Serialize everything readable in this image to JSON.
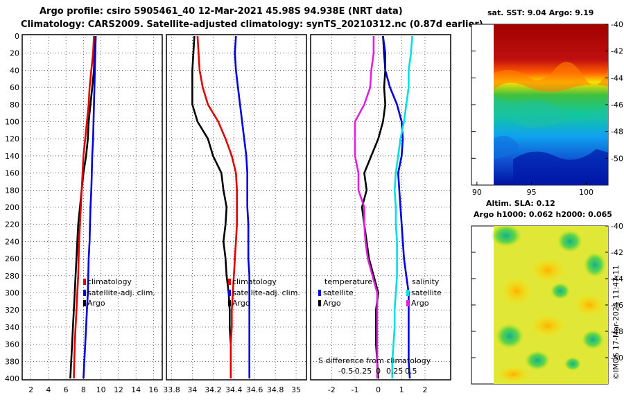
{
  "header": {
    "line1": "Argo profile: csiro 5905461_40 12-Mar-2021 45.98S 94.938E (NRT data)",
    "line2": "Climatology: CARS2009. Satellite-adjusted climatology: synTS_20210312.nc (0.87d earlier)"
  },
  "colors": {
    "argo": "#000000",
    "climatology": "#e00000",
    "satellite": "#0000dd",
    "temp_diff_argo": "#000000",
    "temp_diff_sat": "#0000dd",
    "sal_diff_sat": "#00e0e0",
    "sal_diff_argo": "#e020e0",
    "grid": "#000000"
  },
  "chart_data": [
    {
      "type": "line",
      "name": "temperature-profile",
      "xlim": [
        1,
        17
      ],
      "ylim": [
        0,
        400
      ],
      "xticks": [
        "2",
        "4",
        "6",
        "8",
        "10",
        "12",
        "14",
        "16"
      ],
      "xtick_values": [
        2,
        4,
        6,
        8,
        10,
        12,
        14,
        16
      ],
      "yticks": [
        "0",
        "20",
        "40",
        "60",
        "80",
        "100",
        "120",
        "140",
        "160",
        "180",
        "200",
        "220",
        "240",
        "260",
        "280",
        "300",
        "320",
        "340",
        "360",
        "380",
        "400"
      ],
      "ytick_values": [
        0,
        20,
        40,
        60,
        80,
        100,
        120,
        140,
        160,
        180,
        200,
        220,
        240,
        260,
        280,
        300,
        320,
        340,
        360,
        380,
        400
      ],
      "legend": [
        "climatology",
        "satellite-adj. clim.",
        "Argo"
      ],
      "series": [
        {
          "name": "Argo",
          "color_key": "argo",
          "x": [
            9.3,
            9.25,
            9.2,
            9.0,
            8.8,
            8.6,
            8.5,
            8.3,
            8.0,
            7.8,
            7.6,
            7.4,
            7.3,
            7.2,
            7.1,
            7.0,
            6.9,
            6.8,
            6.7,
            6.6,
            6.5
          ],
          "y": [
            0,
            20,
            40,
            60,
            80,
            100,
            120,
            140,
            160,
            180,
            200,
            220,
            240,
            260,
            280,
            300,
            320,
            340,
            360,
            380,
            400
          ]
        },
        {
          "name": "climatology",
          "color_key": "climatology",
          "x": [
            9.2,
            9.1,
            8.9,
            8.7,
            8.6,
            8.4,
            8.2,
            8.0,
            7.9,
            7.8,
            7.7,
            7.6,
            7.5,
            7.45,
            7.4,
            7.3,
            7.2,
            7.1,
            7.0,
            6.95,
            6.9
          ],
          "y": [
            0,
            20,
            40,
            60,
            80,
            100,
            120,
            140,
            160,
            180,
            200,
            220,
            240,
            260,
            280,
            300,
            320,
            340,
            360,
            380,
            400
          ]
        },
        {
          "name": "satellite-adj. clim.",
          "color_key": "satellite",
          "x": [
            9.4,
            9.35,
            9.3,
            9.25,
            9.2,
            9.15,
            9.1,
            9.0,
            8.95,
            8.9,
            8.8,
            8.75,
            8.7,
            8.6,
            8.55,
            8.5,
            8.4,
            8.3,
            8.2,
            8.1,
            8.0
          ],
          "y": [
            0,
            20,
            40,
            60,
            80,
            100,
            120,
            140,
            160,
            180,
            200,
            220,
            240,
            260,
            280,
            300,
            320,
            340,
            360,
            380,
            400
          ]
        }
      ]
    },
    {
      "type": "line",
      "name": "salinity-profile",
      "xlim": [
        33.75,
        35.1
      ],
      "ylim": [
        0,
        400
      ],
      "xticks": [
        "33.8",
        "34",
        "34.2",
        "34.4",
        "34.6",
        "34.8",
        "35"
      ],
      "xtick_values": [
        33.8,
        34.0,
        34.2,
        34.4,
        34.6,
        34.8,
        35.0
      ],
      "legend": [
        "climatology",
        "satellite-adj. clim.",
        "Argo"
      ],
      "series": [
        {
          "name": "Argo",
          "color_key": "argo",
          "x": [
            34.02,
            34.01,
            34.0,
            34.0,
            34.0,
            34.05,
            34.15,
            34.2,
            34.28,
            34.3,
            34.33,
            34.32,
            34.3,
            34.32,
            34.33,
            34.35,
            34.36,
            34.36,
            34.37,
            34.37,
            34.37
          ],
          "y": [
            0,
            20,
            40,
            60,
            80,
            100,
            120,
            140,
            160,
            180,
            200,
            220,
            240,
            260,
            280,
            300,
            320,
            340,
            360,
            380,
            400
          ]
        },
        {
          "name": "climatology",
          "color_key": "climatology",
          "x": [
            34.05,
            34.06,
            34.07,
            34.1,
            34.15,
            34.25,
            34.32,
            34.38,
            34.42,
            34.43,
            34.43,
            34.43,
            34.42,
            34.41,
            34.4,
            34.39,
            34.38,
            34.38,
            34.37,
            34.37,
            34.37
          ],
          "y": [
            0,
            20,
            40,
            60,
            80,
            100,
            120,
            140,
            160,
            180,
            200,
            220,
            240,
            260,
            280,
            300,
            320,
            340,
            360,
            380,
            400
          ]
        },
        {
          "name": "satellite-adj. clim.",
          "color_key": "satellite",
          "x": [
            34.42,
            34.41,
            34.42,
            34.44,
            34.46,
            34.48,
            34.5,
            34.52,
            34.53,
            34.53,
            34.53,
            34.54,
            34.54,
            34.54,
            34.55,
            34.55,
            34.55,
            34.55,
            34.55,
            34.55,
            34.55
          ],
          "y": [
            0,
            20,
            40,
            60,
            80,
            100,
            120,
            140,
            160,
            180,
            200,
            220,
            240,
            260,
            280,
            300,
            320,
            340,
            360,
            380,
            400
          ]
        }
      ]
    },
    {
      "type": "line",
      "name": "difference-from-climatology",
      "xlim": [
        -2.9,
        3.1
      ],
      "ylim": [
        0,
        400
      ],
      "xticks": [
        "-2",
        "-1",
        "0",
        "1",
        "2"
      ],
      "xtick_values": [
        -2,
        -1,
        0,
        1,
        2
      ],
      "secondary_xticks": [
        "-0.5",
        "-0.25",
        "0",
        "0.25",
        "0.5"
      ],
      "secondary_xtick_positions": [
        -1.4,
        -0.7,
        0,
        0.7,
        1.4
      ],
      "secondary_xlabel": "S difference from climatology",
      "legend_left_title": "temperature",
      "legend_right_title": "salinity",
      "legend": [
        "satellite",
        "Argo"
      ],
      "series": [
        {
          "name": "temperature Argo",
          "color_key": "temp_diff_argo",
          "x": [
            0.2,
            0.25,
            0.3,
            0.25,
            0.3,
            0.2,
            0.0,
            -0.3,
            -0.6,
            -0.5,
            -0.7,
            -0.6,
            -0.5,
            -0.4,
            -0.2,
            0.0,
            -0.1,
            -0.1,
            -0.1,
            -0.05,
            0.0
          ],
          "y": [
            0,
            20,
            40,
            60,
            80,
            100,
            120,
            140,
            160,
            180,
            200,
            220,
            240,
            260,
            280,
            300,
            320,
            340,
            360,
            380,
            400
          ]
        },
        {
          "name": "temperature satellite",
          "color_key": "temp_diff_sat",
          "x": [
            0.2,
            0.3,
            0.3,
            0.5,
            0.8,
            1.0,
            1.05,
            1.0,
            0.85,
            0.9,
            0.95,
            1.0,
            1.05,
            1.1,
            1.2,
            1.3,
            1.3,
            1.3,
            1.3,
            1.3,
            1.35
          ],
          "y": [
            0,
            20,
            40,
            60,
            80,
            100,
            120,
            140,
            160,
            180,
            200,
            220,
            240,
            260,
            280,
            300,
            320,
            340,
            360,
            380,
            400
          ]
        },
        {
          "name": "salinity satellite",
          "color_key": "sal_diff_sat",
          "x": [
            1.45,
            1.4,
            1.3,
            1.3,
            1.2,
            1.1,
            0.95,
            0.85,
            0.75,
            0.7,
            0.75,
            0.75,
            0.8,
            0.8,
            0.8,
            0.75,
            0.7,
            0.7,
            0.65,
            0.6,
            0.6
          ],
          "y": [
            0,
            20,
            40,
            60,
            80,
            100,
            120,
            140,
            160,
            180,
            200,
            220,
            240,
            260,
            280,
            300,
            320,
            340,
            360,
            380,
            400
          ]
        },
        {
          "name": "salinity Argo",
          "color_key": "sal_diff_argo",
          "x": [
            -0.2,
            -0.2,
            -0.3,
            -0.35,
            -0.6,
            -1.0,
            -1.0,
            -1.0,
            -0.85,
            -0.85,
            -0.6,
            -0.6,
            -0.55,
            -0.45,
            -0.25,
            -0.05,
            -0.05,
            -0.05,
            -0.05,
            -0.05,
            -0.05
          ],
          "y": [
            0,
            20,
            40,
            60,
            80,
            100,
            120,
            140,
            160,
            180,
            200,
            220,
            240,
            260,
            280,
            300,
            320,
            340,
            360,
            380,
            400
          ]
        }
      ]
    },
    {
      "type": "heatmap",
      "name": "satellite-sst-map",
      "title": "sat. SST: 9.04 Argo: 9.19",
      "xticks": [
        "90",
        "95",
        "100"
      ],
      "xtick_values": [
        90,
        95,
        100
      ],
      "yticks": [
        "-40",
        "-42",
        "-44",
        "-46",
        "-48",
        "-50"
      ],
      "ytick_values": [
        -40,
        -42,
        -44,
        -46,
        -48,
        -50
      ],
      "xlim": [
        89.5,
        102
      ],
      "ylim": [
        -52,
        -40
      ]
    },
    {
      "type": "heatmap",
      "name": "altimetry-sla-map",
      "title": "Altim. SLA: 0.12",
      "subtitle": "Argo h1000: 0.062 h2000: 0.065",
      "yticks": [
        "-40",
        "-42",
        "-44",
        "-46",
        "-48",
        "-50"
      ],
      "ytick_values": [
        -40,
        -42,
        -44,
        -46,
        -48,
        -50
      ],
      "ylim": [
        -52,
        -40
      ],
      "watermark": "©IMOS 17-Mar-2021 11:47:11"
    }
  ]
}
